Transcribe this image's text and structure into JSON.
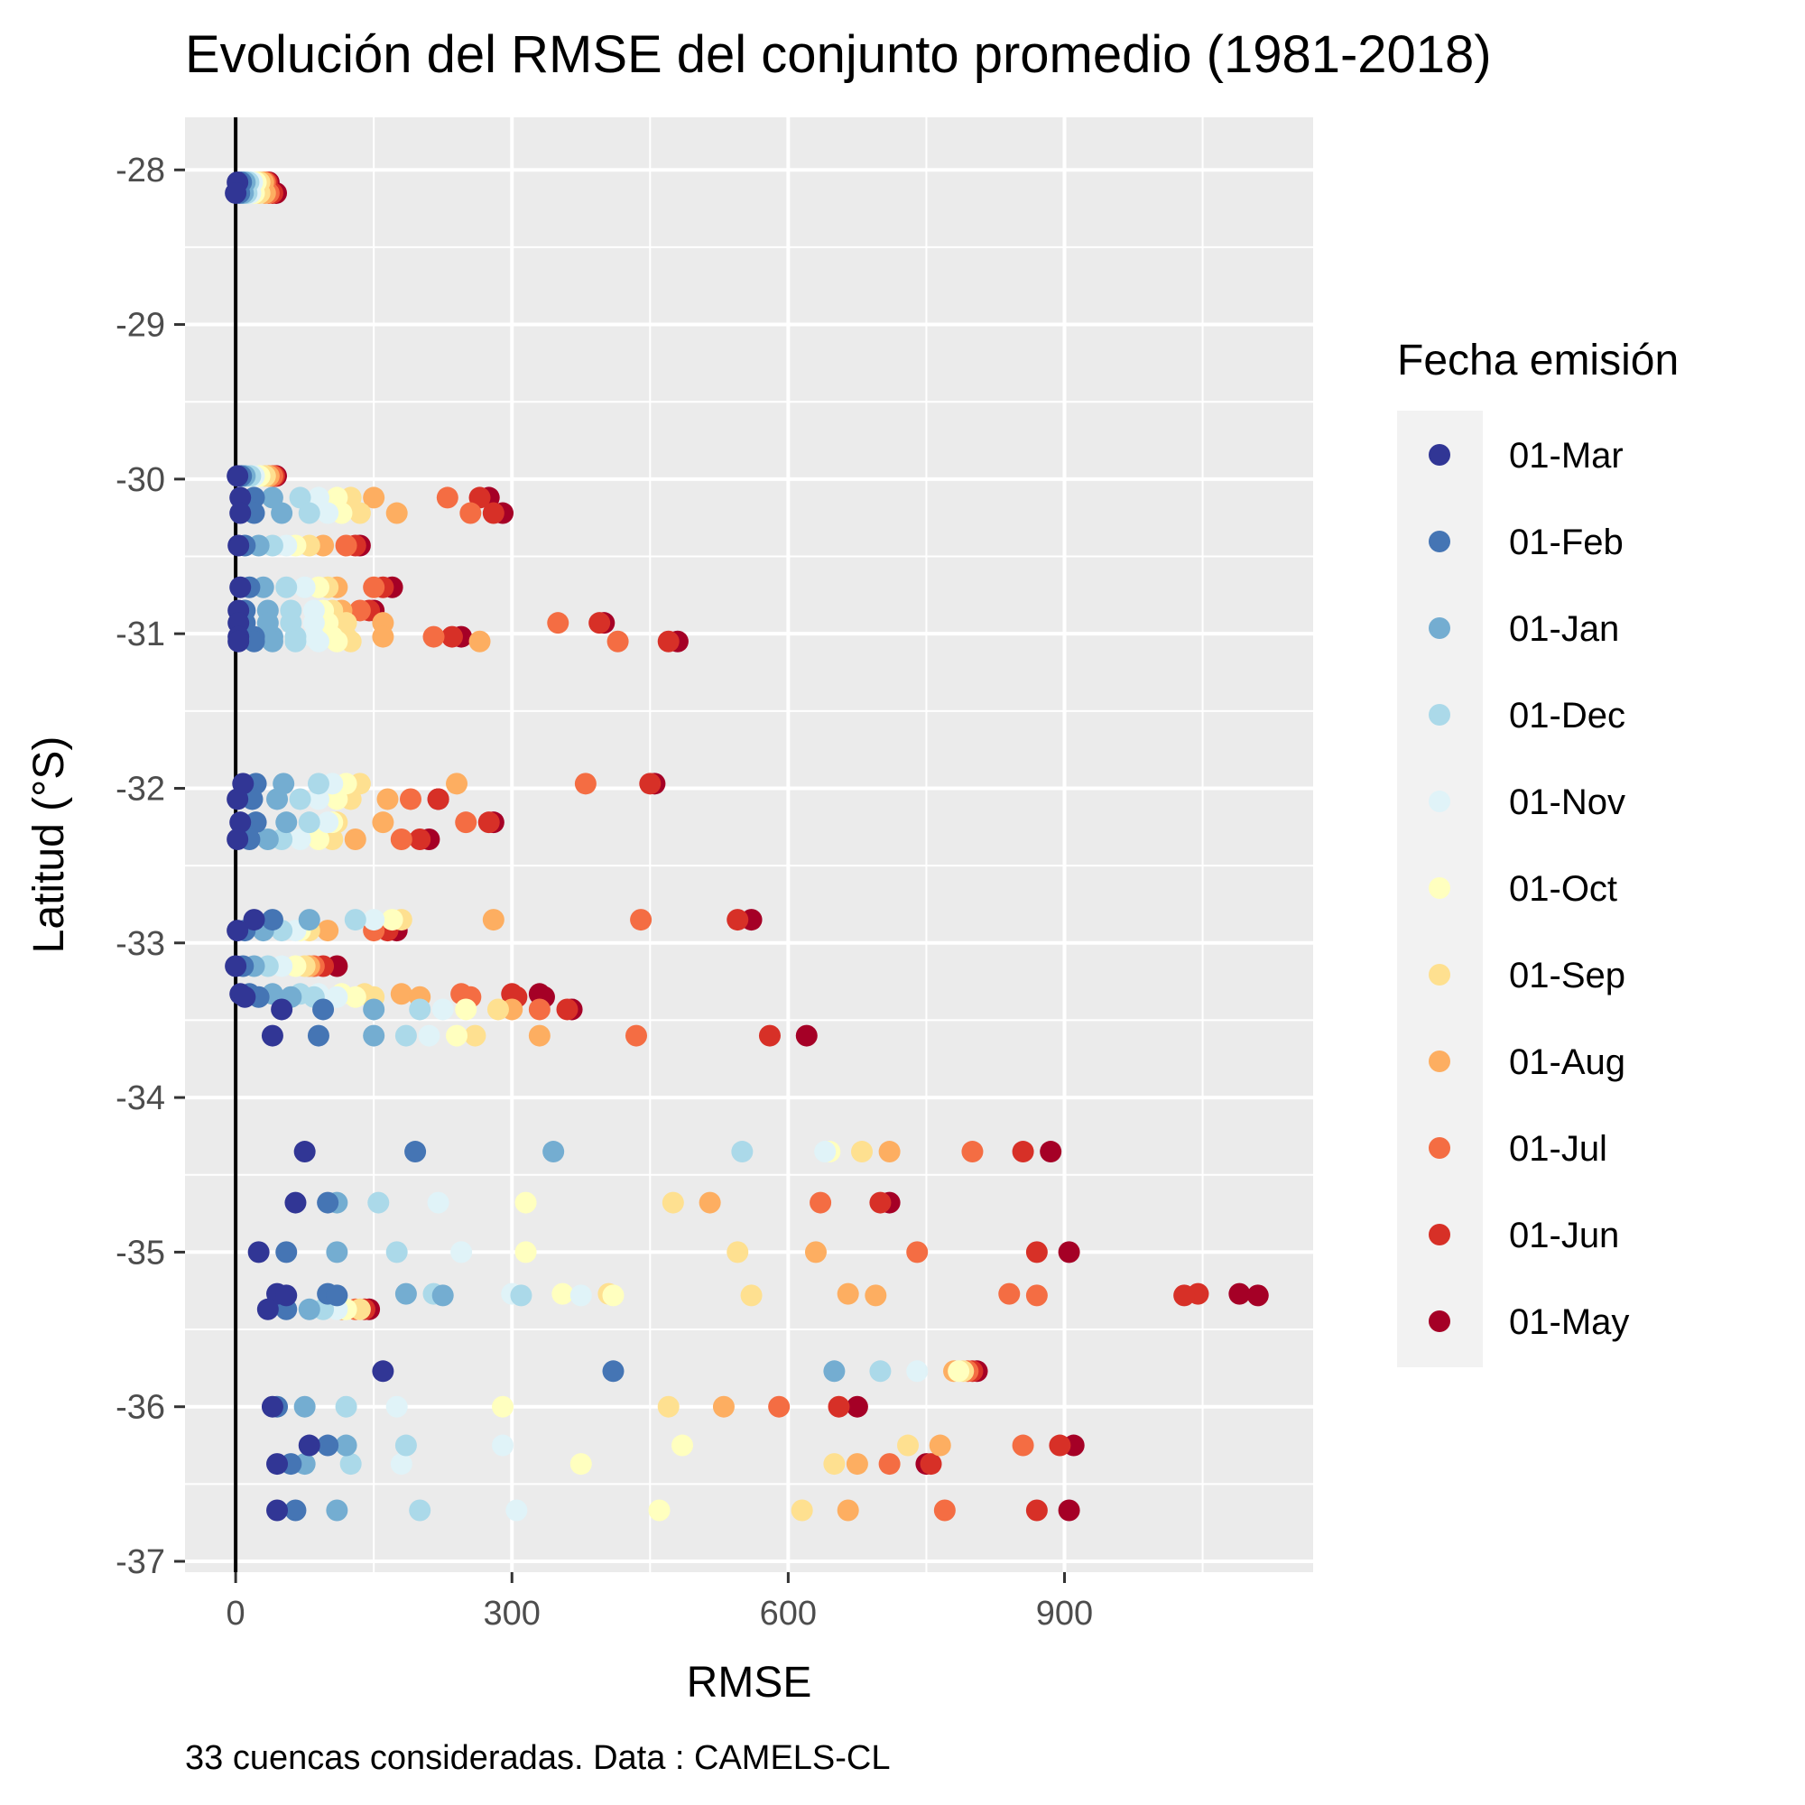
{
  "chart_data": {
    "type": "scatter",
    "title": "Evolución del RMSE del conjunto promedio (1981-2018)",
    "xlabel": "RMSE",
    "ylabel": "Latitud (°S)",
    "caption": "33 cuencas consideradas. Data : CAMELS-CL",
    "xlim": [
      -55,
      1170
    ],
    "ylim": [
      -37.07,
      -27.66
    ],
    "xticks": [
      0,
      300,
      600,
      900
    ],
    "yticks": [
      -28,
      -29,
      -30,
      -31,
      -32,
      -33,
      -34,
      -35,
      -36,
      -37
    ],
    "grid": true,
    "reference_line": {
      "x": 0
    },
    "legend": {
      "title": "Fecha emisión",
      "position": "right",
      "entries": [
        "01-Mar",
        "01-Feb",
        "01-Jan",
        "01-Dec",
        "01-Nov",
        "01-Oct",
        "01-Sep",
        "01-Aug",
        "01-Jul",
        "01-Jun",
        "01-May"
      ]
    },
    "colors": [
      "#313695",
      "#4575b4",
      "#74add1",
      "#abd9e9",
      "#e0f3f8",
      "#ffffbf",
      "#fee090",
      "#fdae61",
      "#f46d43",
      "#d73027",
      "#a50026"
    ],
    "basins": [
      {
        "lat": -28.08,
        "rmse": [
          2,
          6,
          10,
          14,
          18,
          22,
          26,
          30,
          32,
          34,
          36
        ]
      },
      {
        "lat": -28.15,
        "rmse": [
          0,
          4,
          8,
          12,
          16,
          20,
          26,
          32,
          36,
          40,
          44
        ]
      },
      {
        "lat": -29.98,
        "rmse": [
          2,
          6,
          10,
          16,
          20,
          26,
          32,
          36,
          40,
          42,
          44
        ]
      },
      {
        "lat": -30.12,
        "rmse": [
          5,
          20,
          40,
          70,
          90,
          110,
          125,
          150,
          230,
          265,
          275
        ]
      },
      {
        "lat": -30.22,
        "rmse": [
          5,
          20,
          50,
          80,
          100,
          115,
          135,
          175,
          255,
          280,
          290
        ]
      },
      {
        "lat": -30.43,
        "rmse": [
          3,
          10,
          25,
          40,
          55,
          65,
          80,
          95,
          120,
          130,
          135
        ]
      },
      {
        "lat": -30.7,
        "rmse": [
          5,
          15,
          30,
          55,
          75,
          90,
          100,
          110,
          150,
          160,
          170
        ]
      },
      {
        "lat": -30.85,
        "rmse": [
          3,
          10,
          35,
          60,
          85,
          95,
          105,
          115,
          135,
          145,
          150
        ]
      },
      {
        "lat": -30.93,
        "rmse": [
          3,
          10,
          35,
          60,
          85,
          100,
          120,
          160,
          350,
          395,
          400
        ]
      },
      {
        "lat": -31.02,
        "rmse": [
          3,
          20,
          40,
          65,
          85,
          105,
          120,
          160,
          215,
          235,
          245
        ]
      },
      {
        "lat": -31.05,
        "rmse": [
          3,
          20,
          40,
          65,
          90,
          110,
          125,
          265,
          415,
          470,
          480
        ]
      },
      {
        "lat": -31.97,
        "rmse": [
          8,
          22,
          52,
          90,
          105,
          120,
          135,
          240,
          380,
          450,
          455
        ]
      },
      {
        "lat": -32.07,
        "rmse": [
          2,
          18,
          45,
          70,
          90,
          110,
          125,
          165,
          190,
          220,
          220
        ]
      },
      {
        "lat": -32.22,
        "rmse": [
          5,
          22,
          55,
          80,
          100,
          105,
          110,
          160,
          250,
          275,
          280
        ]
      },
      {
        "lat": -32.33,
        "rmse": [
          2,
          15,
          35,
          50,
          70,
          90,
          105,
          130,
          180,
          200,
          210
        ]
      },
      {
        "lat": -32.85,
        "rmse": [
          20,
          40,
          80,
          130,
          150,
          170,
          180,
          280,
          440,
          545,
          560
        ]
      },
      {
        "lat": -32.92,
        "rmse": [
          2,
          10,
          30,
          50,
          65,
          70,
          80,
          100,
          150,
          165,
          175
        ]
      },
      {
        "lat": -33.15,
        "rmse": [
          0,
          8,
          20,
          35,
          50,
          65,
          75,
          80,
          85,
          95,
          110
        ]
      },
      {
        "lat": -33.33,
        "rmse": [
          5,
          15,
          40,
          70,
          90,
          115,
          140,
          180,
          245,
          300,
          330
        ]
      },
      {
        "lat": -33.35,
        "rmse": [
          10,
          25,
          60,
          85,
          110,
          130,
          150,
          200,
          255,
          305,
          335
        ]
      },
      {
        "lat": -33.43,
        "rmse": [
          50,
          95,
          150,
          200,
          225,
          250,
          285,
          300,
          330,
          360,
          365
        ]
      },
      {
        "lat": -33.6,
        "rmse": [
          40,
          90,
          150,
          185,
          210,
          240,
          260,
          330,
          435,
          580,
          620
        ]
      },
      {
        "lat": -34.35,
        "rmse": [
          75,
          195,
          345,
          550,
          640,
          645,
          680,
          710,
          800,
          855,
          885
        ]
      },
      {
        "lat": -34.68,
        "rmse": [
          65,
          100,
          110,
          155,
          220,
          315,
          475,
          515,
          635,
          700,
          710
        ]
      },
      {
        "lat": -35.0,
        "rmse": [
          25,
          55,
          110,
          175,
          245,
          315,
          545,
          630,
          740,
          870,
          905
        ]
      },
      {
        "lat": -35.27,
        "rmse": [
          45,
          100,
          185,
          215,
          300,
          355,
          405,
          665,
          840,
          1045,
          1090
        ]
      },
      {
        "lat": -35.28,
        "rmse": [
          55,
          110,
          225,
          310,
          375,
          410,
          560,
          695,
          870,
          1030,
          1110
        ]
      },
      {
        "lat": -35.37,
        "rmse": [
          35,
          55,
          80,
          95,
          110,
          120,
          135,
          115,
          130,
          140,
          145
        ]
      },
      {
        "lat": -35.77,
        "rmse": [
          160,
          410,
          650,
          700,
          740,
          785,
          790,
          780,
          795,
          800,
          805
        ]
      },
      {
        "lat": -36.0,
        "rmse": [
          40,
          45,
          75,
          120,
          175,
          290,
          470,
          530,
          590,
          655,
          675
        ]
      },
      {
        "lat": -36.25,
        "rmse": [
          80,
          100,
          120,
          185,
          290,
          485,
          730,
          765,
          855,
          895,
          910
        ]
      },
      {
        "lat": -36.37,
        "rmse": [
          45,
          60,
          75,
          125,
          180,
          375,
          650,
          675,
          710,
          755,
          750
        ]
      },
      {
        "lat": -36.67,
        "rmse": [
          45,
          65,
          110,
          200,
          305,
          460,
          615,
          665,
          770,
          870,
          905
        ]
      }
    ]
  }
}
